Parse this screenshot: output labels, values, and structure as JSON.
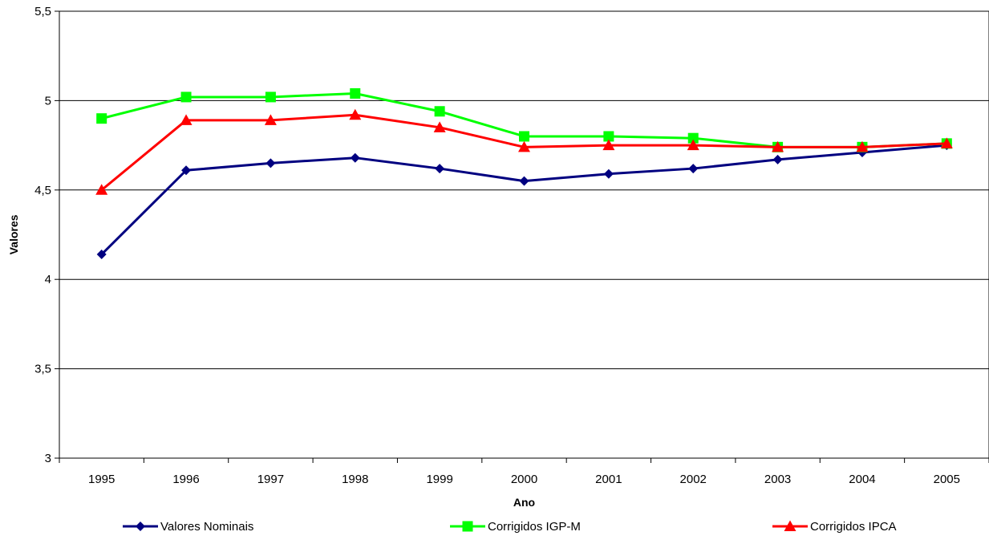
{
  "chart_data": {
    "type": "line",
    "title": "",
    "xlabel": "Ano",
    "ylabel": "Valores",
    "categories": [
      "1995",
      "1996",
      "1997",
      "1998",
      "1999",
      "2000",
      "2001",
      "2002",
      "2003",
      "2004",
      "2005"
    ],
    "ylim": [
      3,
      5.5
    ],
    "yticks": [
      3,
      3.5,
      4,
      4.5,
      5,
      5.5
    ],
    "ytick_labels": [
      "3",
      "3,5",
      "4",
      "4,5",
      "5",
      "5,5"
    ],
    "grid": "horizontal",
    "legend_position": "bottom",
    "series": [
      {
        "name": "Valores Nominais",
        "color": "#000080",
        "marker": "diamond",
        "values": [
          4.14,
          4.61,
          4.65,
          4.68,
          4.62,
          4.55,
          4.59,
          4.62,
          4.67,
          4.71,
          4.75
        ]
      },
      {
        "name": "Corrigidos IGP-M",
        "color": "#00ff00",
        "marker": "square",
        "values": [
          4.9,
          5.02,
          5.02,
          5.04,
          4.94,
          4.8,
          4.8,
          4.79,
          4.74,
          4.74,
          4.76
        ]
      },
      {
        "name": "Corrigidos IPCA",
        "color": "#ff0000",
        "marker": "triangle",
        "values": [
          4.5,
          4.89,
          4.89,
          4.92,
          4.85,
          4.74,
          4.75,
          4.75,
          4.74,
          4.74,
          4.76
        ]
      }
    ]
  }
}
